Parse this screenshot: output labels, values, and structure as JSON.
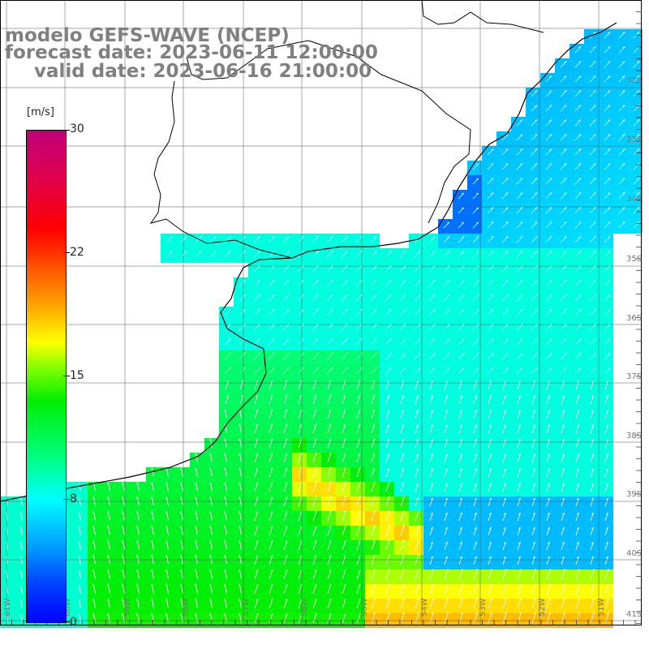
{
  "title": {
    "line1": "modelo GEFS-WAVE (NCEP)",
    "line2": "forecast date: 2023-06-11 12:00:00",
    "line3": "valid date: 2023-06-16 21:00:00"
  },
  "colorbar": {
    "unit": "[m/s]",
    "min": 0,
    "max": 30,
    "ticks": [
      "30",
      "22",
      "15",
      "8",
      "0"
    ]
  },
  "map": {
    "variable": "wind speed",
    "lat_labels": [
      "32S",
      "33S",
      "34S",
      "35S",
      "36S",
      "37S",
      "38S",
      "39S",
      "40S",
      "41S"
    ],
    "lon_labels": [
      "61W",
      "60W",
      "59W",
      "58W",
      "57W",
      "56W",
      "55W",
      "54W",
      "53W",
      "52W",
      "51W"
    ],
    "grid": true,
    "arrows": "white wind direction arrows, mostly pointing north to northeast"
  }
}
